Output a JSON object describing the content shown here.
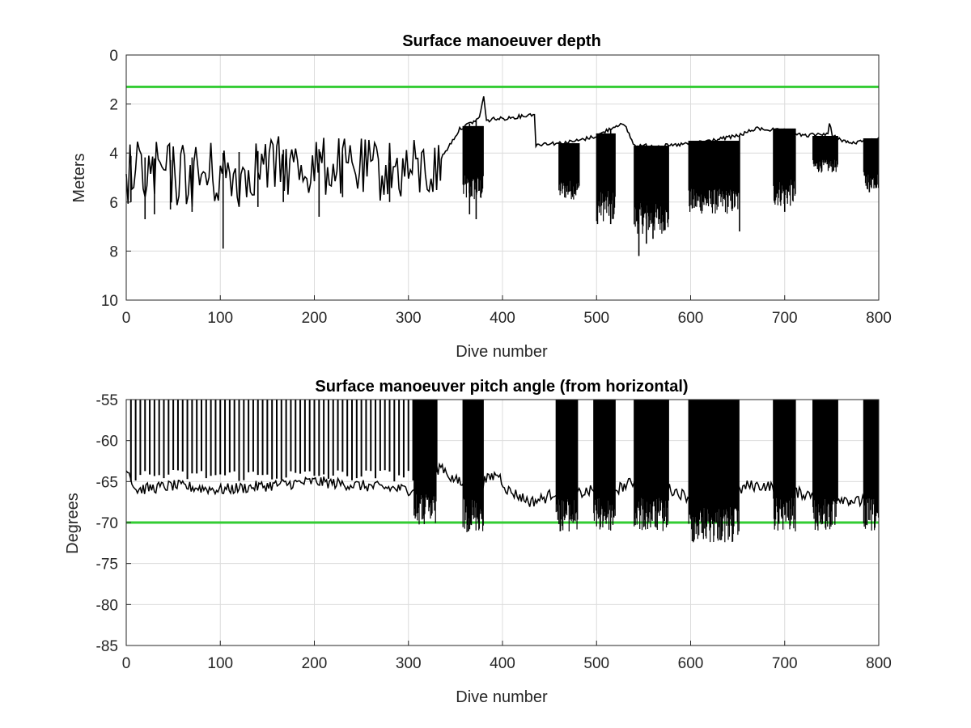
{
  "chart_data": [
    {
      "type": "line",
      "title": "Surface manoeuver depth",
      "xlabel": "Dive number",
      "ylabel": "Meters",
      "xlim": [
        0,
        800
      ],
      "ylim": [
        0,
        10
      ],
      "y_reversed": true,
      "grid": true,
      "xticks": [
        "0",
        "100",
        "200",
        "300",
        "400",
        "500",
        "600",
        "700",
        "800"
      ],
      "yticks": [
        "0",
        "2",
        "4",
        "6",
        "8",
        "10"
      ],
      "threshold": {
        "value": 1.3,
        "color": "#33cc33"
      },
      "series_color": "#000000",
      "baseline_points": [
        [
          0,
          4.1
        ],
        [
          50,
          4.3
        ],
        [
          100,
          4.0
        ],
        [
          150,
          3.9
        ],
        [
          200,
          3.8
        ],
        [
          250,
          4.2
        ],
        [
          300,
          4.5
        ],
        [
          320,
          4.6
        ],
        [
          335,
          4.2
        ],
        [
          345,
          3.6
        ],
        [
          355,
          3.0
        ],
        [
          365,
          2.8
        ],
        [
          375,
          2.6
        ],
        [
          380,
          1.7
        ],
        [
          383,
          2.7
        ],
        [
          390,
          2.6
        ],
        [
          400,
          2.6
        ],
        [
          420,
          2.5
        ],
        [
          434,
          2.4
        ],
        [
          435,
          3.7
        ],
        [
          445,
          3.6
        ],
        [
          460,
          3.6
        ],
        [
          480,
          3.5
        ],
        [
          500,
          3.3
        ],
        [
          520,
          2.9
        ],
        [
          525,
          2.8
        ],
        [
          532,
          3.0
        ],
        [
          540,
          3.7
        ],
        [
          580,
          3.7
        ],
        [
          600,
          3.6
        ],
        [
          620,
          3.5
        ],
        [
          650,
          3.3
        ],
        [
          670,
          3.0
        ],
        [
          700,
          3.1
        ],
        [
          720,
          3.3
        ],
        [
          746,
          3.2
        ],
        [
          748,
          2.7
        ],
        [
          750,
          3.3
        ],
        [
          770,
          3.6
        ],
        [
          790,
          3.5
        ],
        [
          800,
          3.4
        ]
      ],
      "noisy_ranges": [
        {
          "from": 0,
          "to": 130,
          "min": 3.5,
          "max": 6.3,
          "step": 2
        },
        {
          "from": 130,
          "to": 230,
          "min": 3.3,
          "max": 5.8,
          "step": 2
        },
        {
          "from": 230,
          "to": 335,
          "min": 3.4,
          "max": 6.0,
          "step": 2
        }
      ],
      "dense_blocks": [
        {
          "from": 358,
          "to": 380,
          "top": 2.9,
          "bottom": 6.0
        },
        {
          "from": 460,
          "to": 482,
          "top": 3.6,
          "bottom": 5.9
        },
        {
          "from": 500,
          "to": 520,
          "top": 3.2,
          "bottom": 6.8
        },
        {
          "from": 540,
          "to": 577,
          "top": 3.7,
          "bottom": 7.3
        },
        {
          "from": 598,
          "to": 652,
          "top": 3.5,
          "bottom": 6.5
        },
        {
          "from": 688,
          "to": 712,
          "top": 3.0,
          "bottom": 6.2
        },
        {
          "from": 730,
          "to": 757,
          "top": 3.3,
          "bottom": 4.8
        },
        {
          "from": 784,
          "to": 800,
          "top": 3.4,
          "bottom": 5.5
        }
      ],
      "spikes": [
        [
          5,
          6.0
        ],
        [
          20,
          6.7
        ],
        [
          30,
          6.5
        ],
        [
          47,
          6.3
        ],
        [
          70,
          6.4
        ],
        [
          103,
          7.9
        ],
        [
          120,
          6.0
        ],
        [
          140,
          6.2
        ],
        [
          167,
          6.0
        ],
        [
          205,
          6.6
        ],
        [
          230,
          5.8
        ],
        [
          280,
          6.0
        ],
        [
          365,
          6.5
        ],
        [
          372,
          6.7
        ],
        [
          501,
          6.9
        ],
        [
          515,
          6.9
        ],
        [
          545,
          8.2
        ],
        [
          553,
          7.7
        ],
        [
          560,
          7.5
        ],
        [
          610,
          6.0
        ],
        [
          652,
          7.2
        ],
        [
          700,
          6.4
        ],
        [
          790,
          5.6
        ]
      ]
    },
    {
      "type": "line",
      "title": "Surface manoeuver pitch angle (from horizontal)",
      "xlabel": "Dive number",
      "ylabel": "Degrees",
      "xlim": [
        0,
        800
      ],
      "ylim": [
        -85,
        -55
      ],
      "grid": true,
      "xticks": [
        "0",
        "100",
        "200",
        "300",
        "400",
        "500",
        "600",
        "700",
        "800"
      ],
      "yticks": [
        "-55",
        "-60",
        "-65",
        "-70",
        "-75",
        "-80",
        "-85"
      ],
      "threshold": {
        "value": -70,
        "color": "#33cc33"
      },
      "series_color": "#000000",
      "baseline_points": [
        [
          0,
          -63
        ],
        [
          10,
          -66
        ],
        [
          50,
          -65.5
        ],
        [
          100,
          -66
        ],
        [
          150,
          -65.5
        ],
        [
          200,
          -65
        ],
        [
          250,
          -65.5
        ],
        [
          300,
          -66
        ],
        [
          320,
          -65
        ],
        [
          335,
          -63
        ],
        [
          345,
          -64.5
        ],
        [
          360,
          -65.5
        ],
        [
          380,
          -65
        ],
        [
          395,
          -64
        ],
        [
          405,
          -66
        ],
        [
          430,
          -67.5
        ],
        [
          445,
          -67
        ],
        [
          460,
          -66
        ],
        [
          480,
          -66.5
        ],
        [
          500,
          -66
        ],
        [
          520,
          -66
        ],
        [
          540,
          -65
        ],
        [
          560,
          -65.5
        ],
        [
          580,
          -66
        ],
        [
          600,
          -67
        ],
        [
          620,
          -67.5
        ],
        [
          640,
          -67
        ],
        [
          660,
          -65.5
        ],
        [
          680,
          -65.5
        ],
        [
          700,
          -66
        ],
        [
          720,
          -66.5
        ],
        [
          740,
          -66.5
        ],
        [
          760,
          -67
        ],
        [
          780,
          -67.5
        ],
        [
          790,
          -66
        ],
        [
          800,
          -66.5
        ]
      ],
      "spike_range": {
        "from": 5,
        "to": 330,
        "step": 5,
        "top": -55,
        "bottom_min": -65,
        "bottom_max": -66.5
      },
      "dense_blocks": [
        {
          "from": 306,
          "to": 330,
          "top": -55,
          "bottom": -66.5
        },
        {
          "from": 358,
          "to": 380,
          "top": -55,
          "bottom": -67
        },
        {
          "from": 457,
          "to": 480,
          "top": -55,
          "bottom": -67
        },
        {
          "from": 497,
          "to": 520,
          "top": -55,
          "bottom": -67
        },
        {
          "from": 540,
          "to": 577,
          "top": -55,
          "bottom": -67
        },
        {
          "from": 598,
          "to": 652,
          "top": -55,
          "bottom": -68
        },
        {
          "from": 688,
          "to": 712,
          "top": -55,
          "bottom": -67
        },
        {
          "from": 730,
          "to": 757,
          "top": -55,
          "bottom": -67
        },
        {
          "from": 784,
          "to": 800,
          "top": -55,
          "bottom": -67
        }
      ],
      "dips": [
        [
          600,
          -69.5
        ],
        [
          625,
          -68.5
        ],
        [
          745,
          -68
        ],
        [
          770,
          -67.8
        ]
      ]
    }
  ]
}
